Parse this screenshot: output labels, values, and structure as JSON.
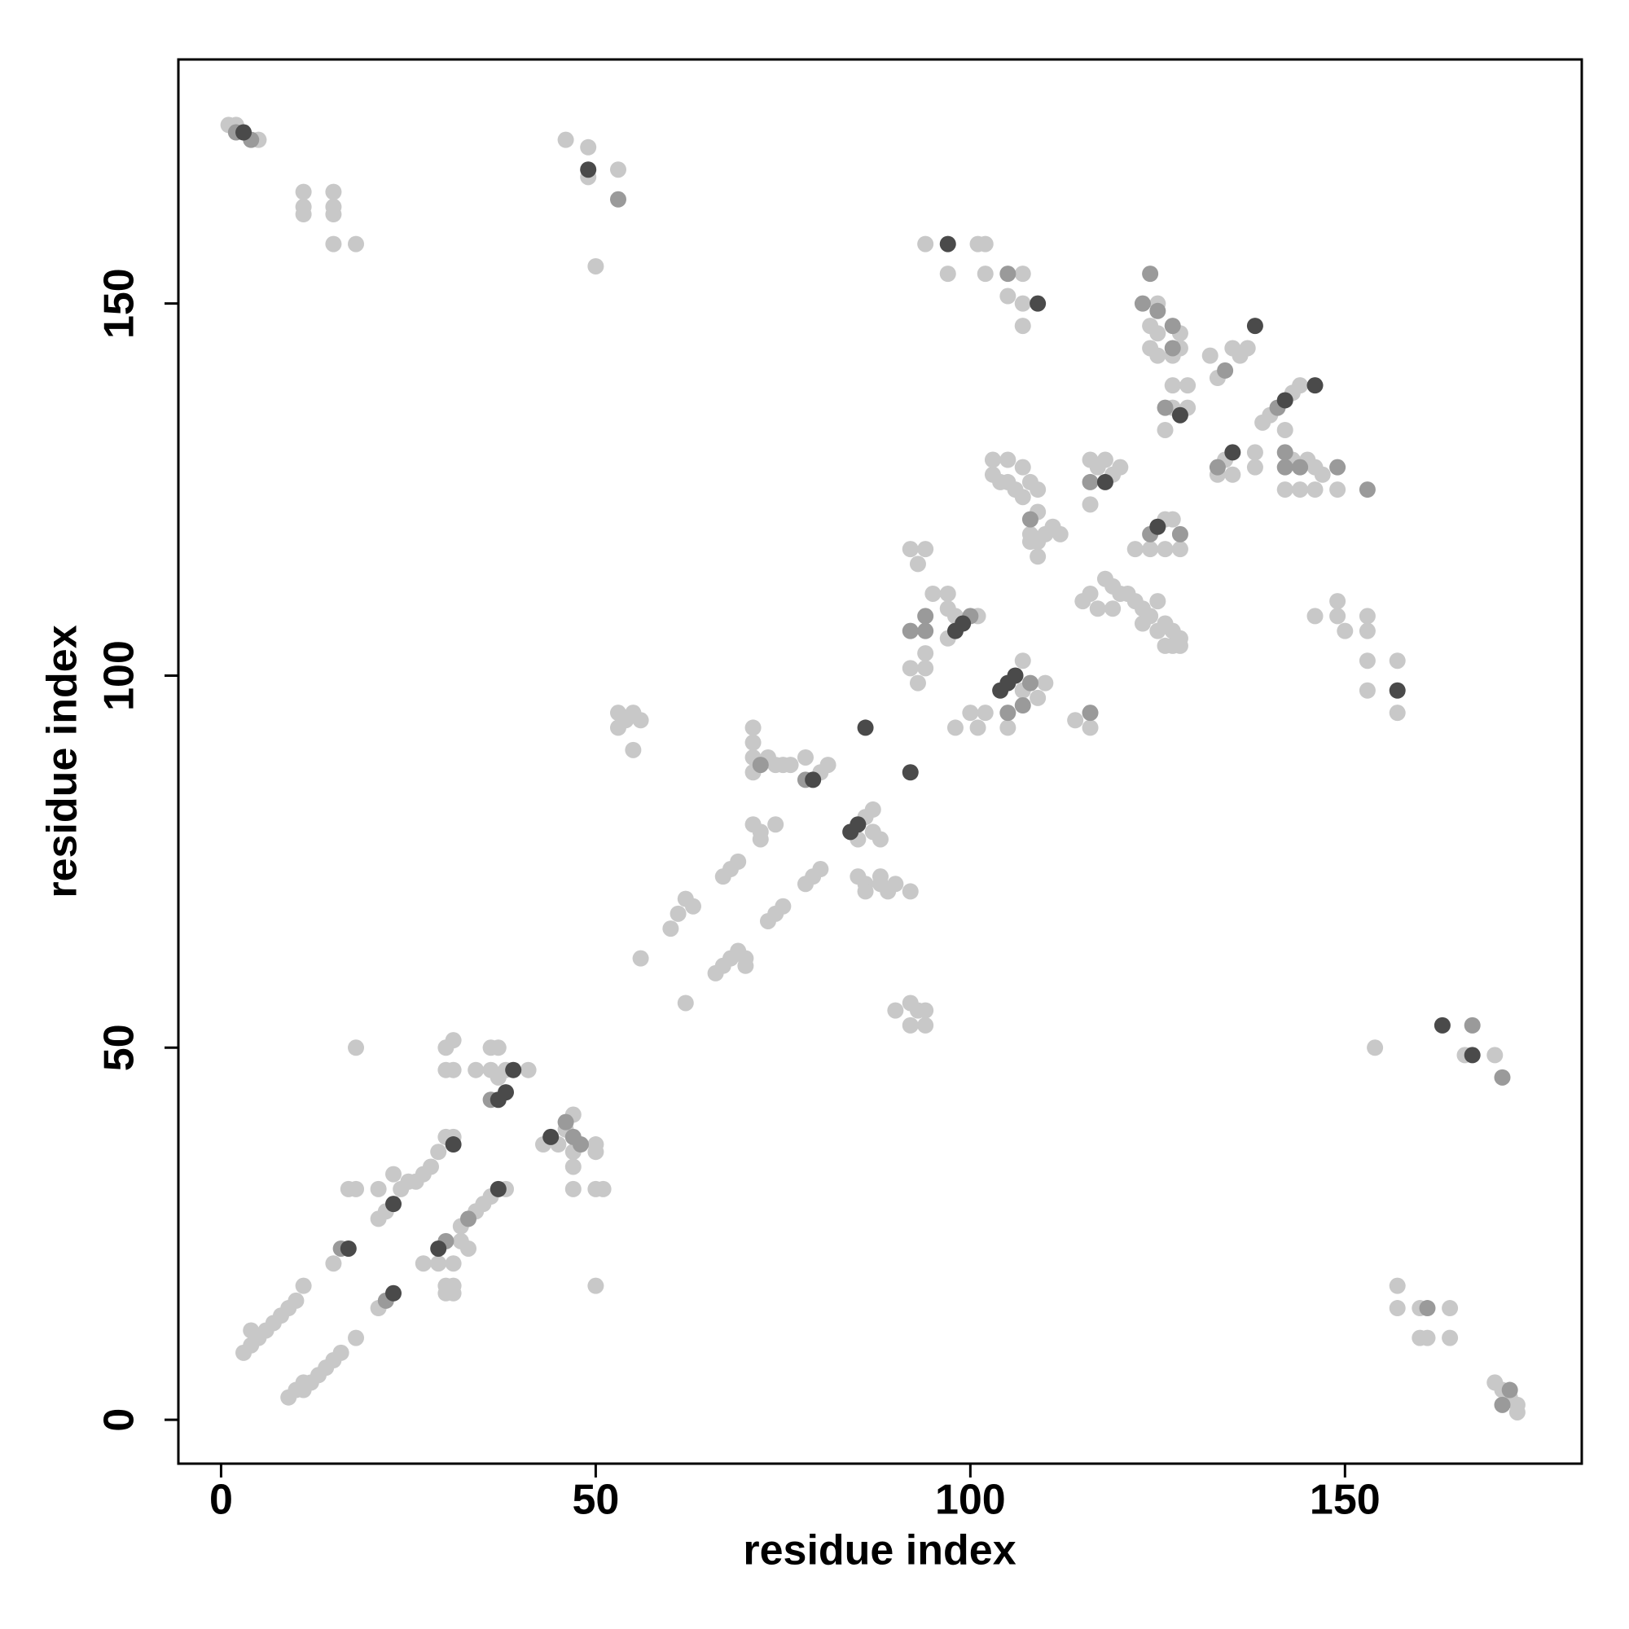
{
  "chart_data": {
    "type": "scatter",
    "xlabel": "residue index",
    "ylabel": "residue index",
    "xlim": [
      -5.7,
      181.6
    ],
    "ylim": [
      -5.9,
      182.8
    ],
    "xticks": [
      0,
      50,
      100,
      150
    ],
    "yticks": [
      0,
      50,
      100,
      150
    ],
    "grid": false,
    "series": [
      {
        "color": "#c8c8c8",
        "x": [
          1,
          2,
          5,
          46,
          49,
          49,
          53,
          50,
          11,
          11,
          11,
          15,
          15,
          15,
          15,
          18,
          94,
          101,
          102,
          97,
          102,
          107,
          105,
          107,
          107,
          125,
          124,
          125,
          128,
          124,
          128,
          125,
          127,
          129,
          127,
          127,
          126,
          129,
          132,
          133,
          135,
          136,
          137,
          139,
          140,
          143,
          144,
          142,
          133,
          134,
          135,
          138,
          138,
          142,
          143,
          145,
          146,
          146,
          147,
          149,
          144,
          103,
          103,
          104,
          105,
          105,
          106,
          107,
          108,
          109,
          109,
          108,
          109,
          110,
          111,
          112,
          107,
          108,
          109,
          116,
          117,
          118,
          119,
          120,
          116,
          122,
          126,
          127,
          128,
          124,
          126,
          92,
          93,
          94,
          95,
          97,
          98,
          101,
          97,
          97,
          92,
          93,
          94,
          94,
          98,
          100,
          102,
          101,
          105,
          107,
          109,
          110,
          107,
          114,
          116,
          115,
          116,
          118,
          119,
          120,
          117,
          119,
          121,
          122,
          123,
          123,
          124,
          125,
          125,
          126,
          127,
          127,
          128,
          128,
          126,
          146,
          149,
          149,
          150,
          153,
          153,
          153,
          153,
          157,
          157,
          154,
          166,
          170,
          157,
          157,
          160,
          164,
          160,
          161,
          164,
          170,
          171,
          173,
          173,
          172,
          53,
          54,
          55,
          56,
          55,
          53,
          71,
          71,
          71,
          71,
          73,
          74,
          75,
          76,
          78,
          80,
          81,
          71,
          72,
          74,
          72,
          86,
          87,
          87,
          88,
          85,
          85,
          86,
          88,
          90,
          92,
          89,
          86,
          88,
          78,
          79,
          80,
          73,
          74,
          75,
          67,
          68,
          69,
          60,
          61,
          62,
          63,
          56,
          66,
          67,
          68,
          69,
          70,
          70,
          62,
          90,
          92,
          93,
          94,
          92,
          94,
          18,
          30,
          31,
          30,
          31,
          34,
          36,
          37,
          36,
          38,
          41,
          37,
          43,
          45,
          47,
          46,
          47,
          47,
          47,
          50,
          50,
          50,
          51,
          50,
          3,
          4,
          5,
          6,
          4,
          7,
          8,
          9,
          10,
          11,
          9,
          10,
          11,
          12,
          13,
          14,
          15,
          16,
          18,
          11,
          15,
          21,
          17,
          18,
          21,
          21,
          22,
          24,
          23,
          25,
          26,
          27,
          28,
          29,
          30,
          31,
          27,
          29,
          31,
          30,
          31,
          30,
          31,
          32,
          33,
          32,
          34,
          35,
          36,
          38
        ],
        "y": [
          174,
          174,
          172,
          172,
          171,
          167,
          168,
          155,
          165,
          163,
          162,
          165,
          163,
          162,
          158,
          158,
          158,
          158,
          158,
          154,
          154,
          154,
          151,
          150,
          147,
          150,
          147,
          146,
          146,
          144,
          144,
          143,
          143,
          139,
          139,
          136,
          133,
          136,
          143,
          140,
          144,
          143,
          144,
          134,
          135,
          138,
          139,
          133,
          127,
          129,
          127,
          130,
          128,
          125,
          129,
          129,
          128,
          125,
          127,
          125,
          125,
          129,
          127,
          126,
          129,
          126,
          125,
          124,
          126,
          125,
          122,
          119,
          118,
          119,
          120,
          119,
          128,
          118,
          116,
          129,
          128,
          129,
          127,
          128,
          123,
          117,
          121,
          121,
          117,
          117,
          117,
          117,
          115,
          117,
          111,
          111,
          108,
          108,
          105,
          109,
          101,
          99,
          101,
          103,
          93,
          95,
          95,
          93,
          93,
          102,
          97,
          99,
          98,
          94,
          93,
          110,
          111,
          113,
          112,
          111,
          109,
          109,
          111,
          110,
          109,
          107,
          108,
          110,
          106,
          107,
          106,
          104,
          105,
          104,
          104,
          108,
          110,
          108,
          106,
          108,
          106,
          102,
          98,
          102,
          95,
          50,
          49,
          49,
          18,
          15,
          15,
          15,
          11,
          11,
          11,
          5,
          4,
          2,
          1,
          3,
          95,
          94,
          95,
          94,
          90,
          93,
          93,
          91,
          89,
          87,
          89,
          88,
          88,
          88,
          89,
          87,
          88,
          80,
          79,
          80,
          78,
          81,
          82,
          79,
          78,
          78,
          73,
          72,
          72,
          72,
          71,
          71,
          71,
          73,
          72,
          73,
          74,
          67,
          68,
          69,
          73,
          74,
          75,
          66,
          68,
          70,
          69,
          62,
          60,
          61,
          62,
          63,
          62,
          61,
          56,
          55,
          56,
          55,
          55,
          53,
          53,
          50,
          50,
          51,
          47,
          47,
          47,
          50,
          50,
          47,
          47,
          47,
          46,
          37,
          37,
          41,
          39,
          36,
          34,
          31,
          37,
          36,
          31,
          31,
          18,
          9,
          10,
          11,
          12,
          12,
          13,
          14,
          15,
          16,
          18,
          3,
          4,
          4,
          5,
          6,
          7,
          8,
          9,
          11,
          5,
          21,
          15,
          31,
          31,
          31,
          27,
          28,
          31,
          33,
          32,
          32,
          33,
          34,
          36,
          38,
          38,
          21,
          21,
          21,
          18,
          18,
          17,
          17,
          24,
          23,
          26,
          28,
          29,
          30,
          31
        ]
      },
      {
        "color": "#9a9a9a",
        "x": [
          2,
          4,
          53,
          124,
          123,
          127,
          126,
          134,
          141,
          142,
          142,
          149,
          108,
          116,
          124,
          92,
          94,
          94,
          108,
          105,
          116,
          171,
          171,
          172,
          167,
          36,
          47,
          46,
          22,
          16,
          30,
          33,
          144,
          133,
          107,
          100,
          127,
          125,
          105,
          153,
          78,
          72,
          161,
          48,
          128
        ],
        "y": [
          173,
          172,
          164,
          154,
          150,
          147,
          136,
          141,
          136,
          130,
          128,
          128,
          121,
          126,
          119,
          106,
          108,
          106,
          99,
          95,
          95,
          46,
          2,
          4,
          53,
          43,
          38,
          40,
          16,
          23,
          24,
          27,
          128,
          128,
          96,
          108,
          144,
          149,
          154,
          125,
          86,
          88,
          15,
          37,
          119
        ]
      },
      {
        "color": "#4a4a4a",
        "x": [
          3,
          49,
          97,
          138,
          128,
          146,
          135,
          118,
          125,
          98,
          99,
          105,
          104,
          106,
          157,
          163,
          167,
          86,
          92,
          79,
          84,
          85,
          39,
          38,
          37,
          44,
          17,
          23,
          23,
          29,
          31,
          37,
          142,
          109
        ],
        "y": [
          173,
          168,
          158,
          147,
          135,
          139,
          130,
          126,
          120,
          106,
          107,
          99,
          98,
          100,
          98,
          53,
          49,
          93,
          87,
          86,
          79,
          80,
          47,
          44,
          43,
          38,
          23,
          17,
          29,
          23,
          37,
          31,
          137,
          150
        ]
      }
    ]
  }
}
